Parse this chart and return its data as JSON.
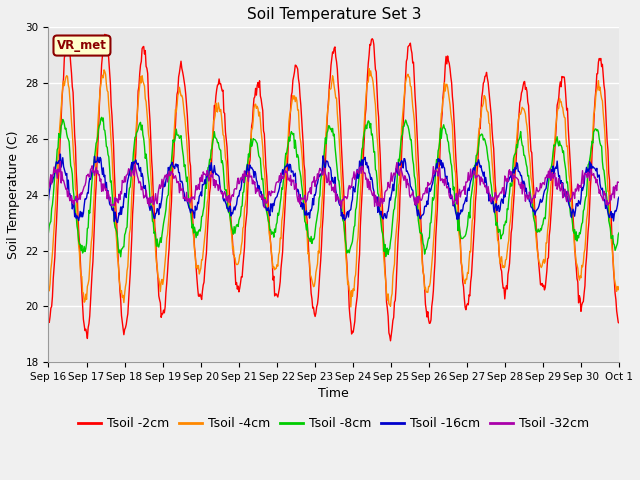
{
  "title": "Soil Temperature Set 3",
  "xlabel": "Time",
  "ylabel": "Soil Temperature (C)",
  "ylim": [
    18,
    30
  ],
  "annotation": "VR_met",
  "fig_bg_color": "#f0f0f0",
  "plot_bg_color": "#e8e8e8",
  "series": [
    {
      "label": "Tsoil -2cm",
      "color": "#ff0000",
      "amplitude": 4.5,
      "phase": 0.0,
      "mean": 24.3
    },
    {
      "label": "Tsoil -4cm",
      "color": "#ff8800",
      "amplitude": 3.5,
      "phase": 0.25,
      "mean": 24.3
    },
    {
      "label": "Tsoil -8cm",
      "color": "#00cc00",
      "amplitude": 2.0,
      "phase": 0.65,
      "mean": 24.3
    },
    {
      "label": "Tsoil -16cm",
      "color": "#0000cc",
      "amplitude": 0.9,
      "phase": 1.3,
      "mean": 24.2
    },
    {
      "label": "Tsoil -32cm",
      "color": "#aa00aa",
      "amplitude": 0.5,
      "phase": 1.9,
      "mean": 24.3
    }
  ],
  "x_tick_labels": [
    "Sep 16",
    "Sep 17",
    "Sep 18",
    "Sep 19",
    "Sep 20",
    "Sep 21",
    "Sep 22",
    "Sep 23",
    "Sep 24",
    "Sep 25",
    "Sep 26",
    "Sep 27",
    "Sep 28",
    "Sep 29",
    "Sep 30",
    "Oct 1"
  ],
  "n_days": 15,
  "points_per_day": 48,
  "title_fontsize": 11,
  "axis_label_fontsize": 9,
  "tick_fontsize": 7.5,
  "legend_fontsize": 9,
  "figsize": [
    6.4,
    4.8
  ],
  "dpi": 100
}
